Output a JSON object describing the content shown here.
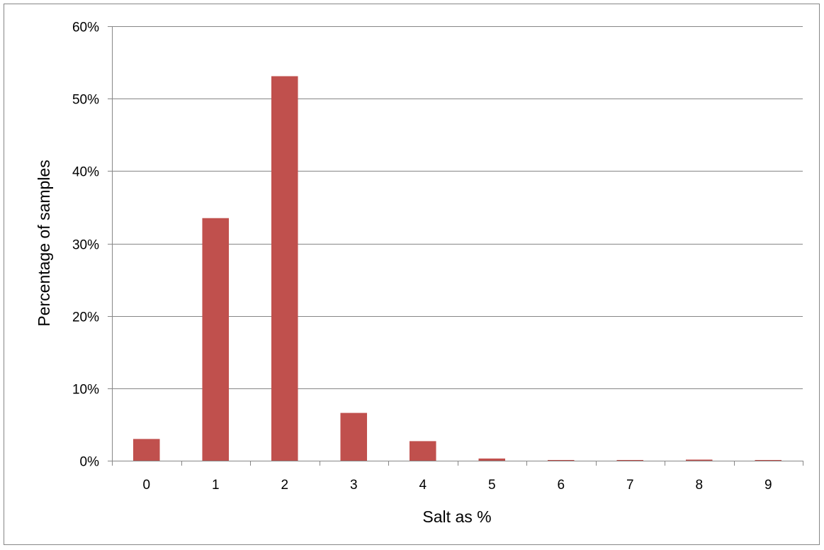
{
  "chart_data": {
    "type": "bar",
    "title": "",
    "xlabel": "Salt as %",
    "ylabel": "Percentage of samples",
    "categories": [
      "0",
      "1",
      "2",
      "3",
      "4",
      "5",
      "6",
      "7",
      "8",
      "9"
    ],
    "series": [
      {
        "values": [
          3.0,
          33.5,
          53.1,
          6.6,
          2.7,
          0.3,
          0.05,
          0.05,
          0.15,
          0.05
        ],
        "color": "#c0504d"
      }
    ],
    "y_ticks": [
      "0%",
      "10%",
      "20%",
      "30%",
      "40%",
      "50%",
      "60%"
    ],
    "ylim": [
      0,
      60
    ],
    "grid": true,
    "legend": "none"
  }
}
